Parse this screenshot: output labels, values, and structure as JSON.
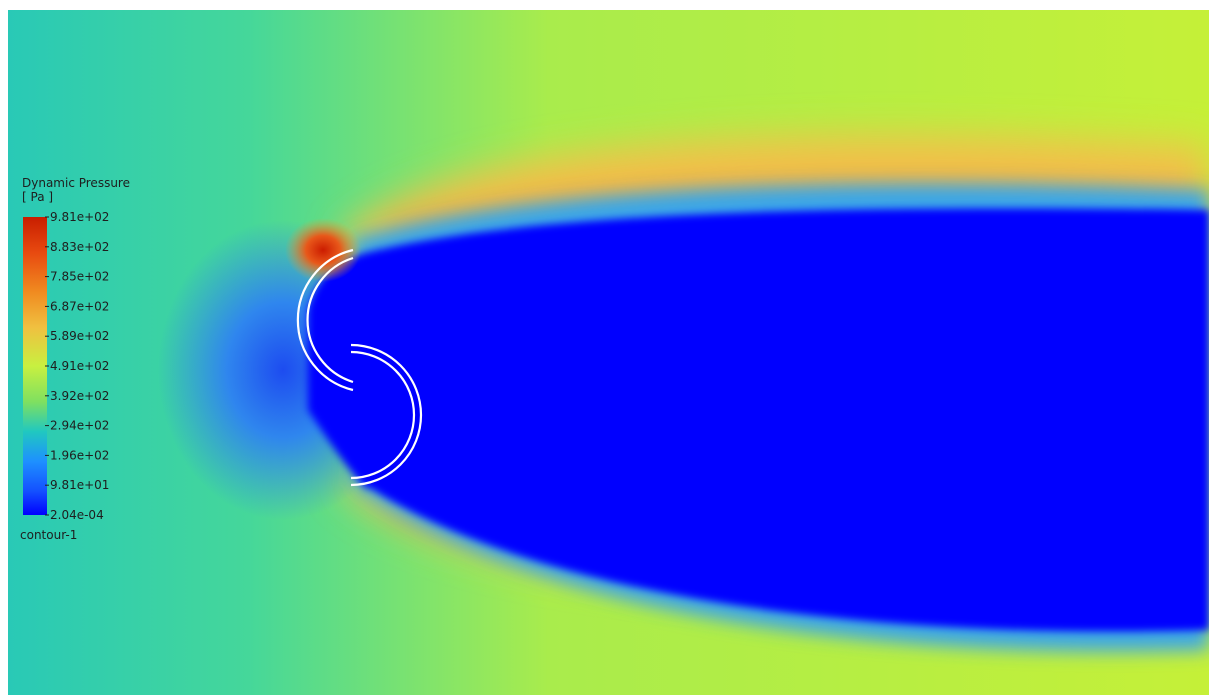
{
  "chart_data": {
    "type": "heatmap",
    "title": "Dynamic Pressure",
    "unit": "[ Pa ]",
    "colormap": "rainbow",
    "color_stops": [
      "#0000ff",
      "#1e90ff",
      "#20c8c0",
      "#7fe060",
      "#c8f040",
      "#f0c040",
      "#f08020",
      "#c81e00"
    ],
    "legend_ticks": [
      "9.81e+02",
      "8.83e+02",
      "7.85e+02",
      "6.87e+02",
      "5.89e+02",
      "4.91e+02",
      "3.92e+02",
      "2.94e+02",
      "1.96e+02",
      "9.81e+01",
      "2.04e-04"
    ],
    "range": [
      0.000204,
      981
    ],
    "legend_position": "left",
    "object_name": "contour-1"
  }
}
